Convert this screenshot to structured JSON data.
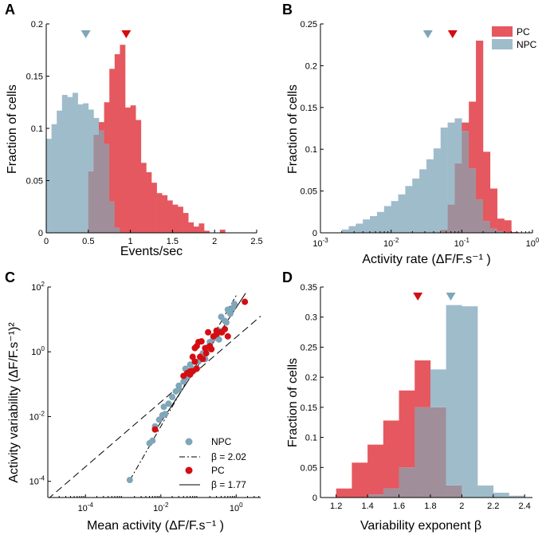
{
  "colors": {
    "pc": "#e5585f",
    "npc": "#9fbccb",
    "overlap": "#a08f9a",
    "pc_marker": "#d40d12",
    "npc_marker": "#7fa6b9"
  },
  "chart_data": [
    {
      "panel": "A",
      "type": "histogram",
      "xlabel": "Events/sec",
      "ylabel": "Fraction of cells",
      "xlim": [
        0,
        2.5
      ],
      "ylim": [
        0,
        0.2
      ],
      "xticks": [
        "0",
        "0.5",
        "1",
        "1.5",
        "2",
        "2.5"
      ],
      "yticks": [
        "0",
        "0.05",
        "0.1",
        "0.15",
        "0.2"
      ],
      "bin_start": 0,
      "bin_width": 0.0625,
      "series": [
        {
          "name": "NPC",
          "values": [
            0.09,
            0.104,
            0.117,
            0.132,
            0.13,
            0.134,
            0.123,
            0.124,
            0.118,
            0.11,
            0.098,
            0.085,
            0.03,
            0.005
          ]
        },
        {
          "name": "PC",
          "values": [
            0,
            0,
            0,
            0,
            0,
            0,
            0,
            0,
            0.059,
            0.094,
            0.106,
            0.125,
            0.157,
            0.171,
            0.18,
            0.12,
            0.122,
            0.108,
            0.067,
            0.058,
            0.048,
            0.038,
            0.036,
            0.031,
            0.027,
            0.025,
            0.019,
            0.01,
            0.006,
            0.009,
            0.002,
            0,
            0,
            0.003,
            0,
            0,
            0
          ]
        }
      ],
      "markers": [
        {
          "series": "NPC",
          "x": 0.47
        },
        {
          "series": "PC",
          "x": 0.95
        }
      ]
    },
    {
      "panel": "B",
      "type": "histogram",
      "xscale": "log",
      "xlabel": "Activity rate (ΔF/F.s⁻¹ )",
      "ylabel": "Fraction of cells",
      "xlim_log10": [
        -3,
        0
      ],
      "ylim": [
        0,
        0.25
      ],
      "xticks_log10": [
        -3,
        -2,
        -1,
        0
      ],
      "xtick_base": "10",
      "xtick_exps": [
        "-3",
        "-2",
        "-1",
        "0"
      ],
      "yticks": [
        "0",
        "0.05",
        "0.1",
        "0.15",
        "0.2",
        "0.25"
      ],
      "bin_start_log10": -2.7,
      "bin_width_log10": 0.1,
      "series": [
        {
          "name": "NPC",
          "values": [
            0.004,
            0.008,
            0.011,
            0.016,
            0.02,
            0.025,
            0.032,
            0.038,
            0.046,
            0.056,
            0.065,
            0.076,
            0.088,
            0.101,
            0.126,
            0.132,
            0.137,
            0.122,
            0.077,
            0.04,
            0.014,
            0.005,
            0.002,
            0,
            0.0
          ]
        },
        {
          "name": "PC",
          "values": [
            0,
            0,
            0,
            0,
            0,
            0,
            0,
            0,
            0,
            0,
            0,
            0,
            0,
            0,
            0.004,
            0.034,
            0.083,
            0.132,
            0.157,
            0.23,
            0.097,
            0.053,
            0.017,
            0.015,
            0.001
          ]
        }
      ],
      "markers": [
        {
          "series": "NPC",
          "x_log10": -1.48
        },
        {
          "series": "PC",
          "x_log10": -1.13
        }
      ],
      "legend": {
        "position": "top-right",
        "entries": [
          "PC",
          "NPC"
        ]
      }
    },
    {
      "panel": "C",
      "type": "scatter",
      "xscale": "log",
      "yscale": "log",
      "xlabel": "Mean activity (ΔF/F.s⁻¹ )",
      "ylabel": "Activity variability (ΔF/F.s⁻¹)²",
      "xlim_log10": [
        -5,
        0.65
      ],
      "ylim_log10": [
        -4.5,
        2
      ],
      "xticks_log10": [
        -4,
        -2,
        0
      ],
      "xtick_exps": [
        "-4",
        "-2",
        "0"
      ],
      "yticks_log10": [
        -4,
        -2,
        0,
        2
      ],
      "ytick_exps": [
        "-4",
        "-2",
        "0",
        "2"
      ],
      "tick_base": "10",
      "series": [
        {
          "name": "NPC",
          "x": [
            0.0015,
            0.005,
            0.006,
            0.007,
            0.009,
            0.011,
            0.013,
            0.016,
            0.02,
            0.025,
            0.03,
            0.04,
            0.05,
            0.07,
            0.1,
            0.13,
            0.18,
            0.25,
            0.35,
            0.5,
            0.7,
            0.8,
            0.9,
            0.6,
            0.4,
            0.3,
            0.045,
            0.06,
            0.15,
            0.2,
            0.012,
            0.03,
            0.08,
            0.35,
            0.55
          ],
          "y": [
            0.00011,
            0.0015,
            0.0018,
            0.005,
            0.008,
            0.011,
            0.012,
            0.025,
            0.04,
            0.06,
            0.07,
            0.12,
            0.17,
            0.28,
            0.5,
            0.9,
            1.4,
            2.6,
            4.5,
            9,
            15,
            22,
            30,
            20,
            12,
            3,
            0.3,
            0.4,
            0.6,
            2,
            0.02,
            0.09,
            0.3,
            2.4,
            8
          ]
        },
        {
          "name": "PC",
          "x": [
            0.007,
            0.04,
            0.05,
            0.06,
            0.07,
            0.08,
            0.09,
            0.1,
            0.12,
            0.15,
            0.2,
            0.25,
            0.3,
            0.4,
            0.5,
            0.6,
            0.07,
            0.09,
            0.11,
            0.13,
            0.18,
            0.22,
            0.3,
            0.42,
            1.7,
            0.06,
            0.08,
            0.16
          ],
          "y": [
            0.004,
            0.18,
            0.22,
            0.25,
            0.7,
            1.3,
            1.5,
            2,
            2.1,
            1.3,
            1.5,
            3,
            3.5,
            4,
            5,
            3,
            0.25,
            0.3,
            0.7,
            0.6,
            4,
            1.2,
            4.5,
            4,
            35,
            0.2,
            0.5,
            0.9
          ]
        }
      ],
      "fit_lines": [
        {
          "name": "NPC fit",
          "label_prefix": "β = ",
          "beta": 2.02,
          "label_value": "2.02",
          "x_log10_range": [
            -2.82,
            0.02
          ],
          "anchor_x_log10": -2.82,
          "anchor_y_log10": -3.96,
          "style": "dashdot"
        },
        {
          "name": "PC fit",
          "label_prefix": "β = ",
          "beta": 1.77,
          "label_value": "1.77",
          "x_log10_range": [
            -2.15,
            0.25
          ],
          "anchor_x_log10": -2.15,
          "anchor_y_log10": -2.44,
          "style": "solid"
        },
        {
          "name": "identity",
          "slope": 1,
          "x_log10_range": [
            -5,
            0.65
          ],
          "anchor_x_log10": 0,
          "anchor_y_log10": 0.45,
          "style": "dashed"
        }
      ],
      "legend": {
        "position": "bottom-right",
        "entries": [
          "NPC",
          "β = 2.02",
          "PC",
          "β = 1.77"
        ]
      }
    },
    {
      "panel": "D",
      "type": "histogram",
      "xlabel": "Variability exponent β",
      "ylabel": "Fraction of cells",
      "xlim": [
        1.1,
        2.45
      ],
      "ylim": [
        0,
        0.35
      ],
      "xticks": [
        "1.2",
        "1.4",
        "1.6",
        "1.8",
        "2",
        "2.2",
        "2.4"
      ],
      "xtick_values": [
        1.2,
        1.4,
        1.6,
        1.8,
        2.0,
        2.2,
        2.4
      ],
      "yticks": [
        "0",
        "0.05",
        "0.1",
        "0.15",
        "0.2",
        "0.25",
        "0.3",
        "0.35"
      ],
      "bin_start": 1.2,
      "bin_width": 0.1,
      "series": [
        {
          "name": "NPC",
          "values": [
            0,
            0,
            0.005,
            0.015,
            0.05,
            0.15,
            0.213,
            0.32,
            0.318,
            0.02,
            0.008,
            0.003
          ]
        },
        {
          "name": "PC",
          "values": [
            0.015,
            0.058,
            0.088,
            0.128,
            0.178,
            0.228,
            0.15,
            0.02,
            0,
            0,
            0,
            0
          ]
        }
      ],
      "markers": [
        {
          "series": "PC",
          "x": 1.72
        },
        {
          "series": "NPC",
          "x": 1.93
        }
      ]
    }
  ],
  "panel_labels": [
    "A",
    "B",
    "C",
    "D"
  ],
  "panel_titles": {
    "A": {
      "xlabel": "Events/sec",
      "ylabel": "Fraction of cells"
    },
    "B": {
      "xlabel": "Activity rate (ΔF/F.s⁻¹ )",
      "ylabel": "Fraction of cells",
      "legend_pc": "PC",
      "legend_npc": "NPC"
    },
    "C": {
      "xlabel": "Mean activity (ΔF/F.s⁻¹ )",
      "ylabel": "Activity variability (ΔF/F.s⁻¹)²",
      "legend_npc": "NPC",
      "legend_npc_fit": "β = 2.02",
      "legend_pc": "PC",
      "legend_pc_fit": "β = 1.77"
    },
    "D": {
      "xlabel": "Variability exponent β",
      "ylabel": "Fraction of cells"
    }
  }
}
